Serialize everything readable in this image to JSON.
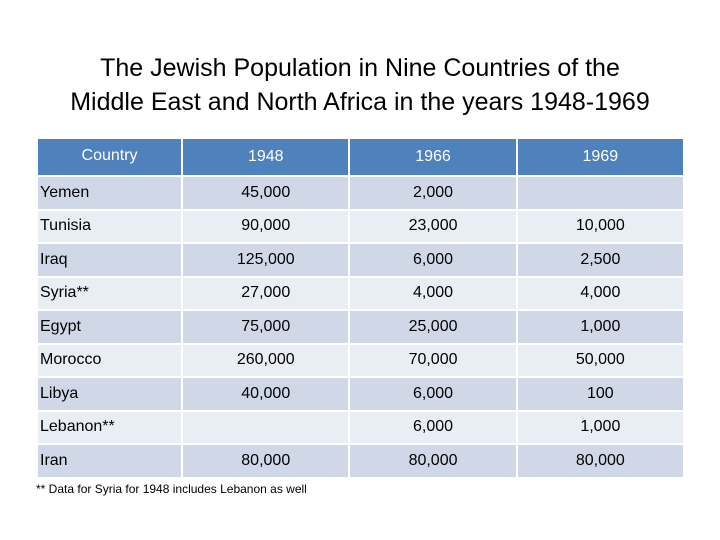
{
  "title": {
    "line1": "The Jewish Population in Nine Countries of the",
    "line2": "Middle East and North Africa in the years 1948-1969"
  },
  "table": {
    "headers": [
      "Country",
      "1948",
      "1966",
      "1969"
    ],
    "rows": [
      {
        "country": "Yemen",
        "y1948": "45,000",
        "y1966": "2,000",
        "y1969": ""
      },
      {
        "country": "Tunisia",
        "y1948": "90,000",
        "y1966": "23,000",
        "y1969": "10,000"
      },
      {
        "country": "Iraq",
        "y1948": "125,000",
        "y1966": "6,000",
        "y1969": "2,500"
      },
      {
        "country": "Syria**",
        "y1948": "27,000",
        "y1966": "4,000",
        "y1969": "4,000"
      },
      {
        "country": "Egypt",
        "y1948": "75,000",
        "y1966": "25,000",
        "y1969": "1,000"
      },
      {
        "country": "Morocco",
        "y1948": "260,000",
        "y1966": "70,000",
        "y1969": "50,000"
      },
      {
        "country": "Libya",
        "y1948": "40,000",
        "y1966": "6,000",
        "y1969": "100"
      },
      {
        "country": "Lebanon**",
        "y1948": "",
        "y1966": "6,000",
        "y1969": "1,000"
      },
      {
        "country": "Iran",
        "y1948": "80,000",
        "y1966": "80,000",
        "y1969": "80,000"
      }
    ]
  },
  "footnote": "** Data for Syria for 1948 includes Lebanon as well",
  "colors": {
    "header": "#4f81bd",
    "row_odd": "#d0d8e8",
    "row_even": "#e9edf4"
  }
}
